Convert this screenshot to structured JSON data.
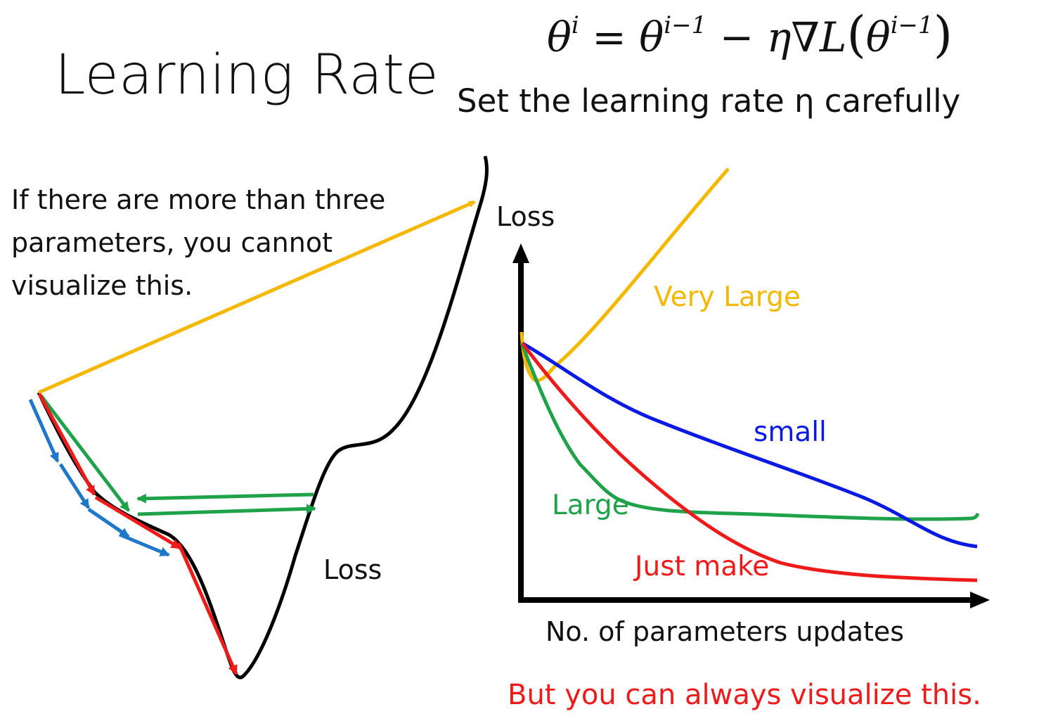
{
  "title": "Learning Rate",
  "formula": {
    "lhs": "θ",
    "lhs_sup": "i",
    "eq": " = ",
    "t1": "θ",
    "t1_sup": "i−1",
    "minus": " − ",
    "eta_grad": "η∇L",
    "open": "(",
    "t2": "θ",
    "t2_sup": "i−1",
    "close": ")"
  },
  "subtitle": "Set the learning rate η carefully",
  "note": "If there are more than three parameters, you cannot visualize this.",
  "loss_left": "Loss",
  "loss_axis": "Loss",
  "x_axis": "No. of parameters updates",
  "curves": {
    "very_large": "Very Large",
    "small": "small",
    "large": "Large",
    "just_make": "Just make"
  },
  "footer": "But you can always visualize this.",
  "colors": {
    "very_large": "#f5b800",
    "small": "#0a1ae0",
    "large": "#1fa24a",
    "just_make": "#ee1b1b",
    "steps_small": "#1f77c9",
    "axis": "#000000"
  }
}
